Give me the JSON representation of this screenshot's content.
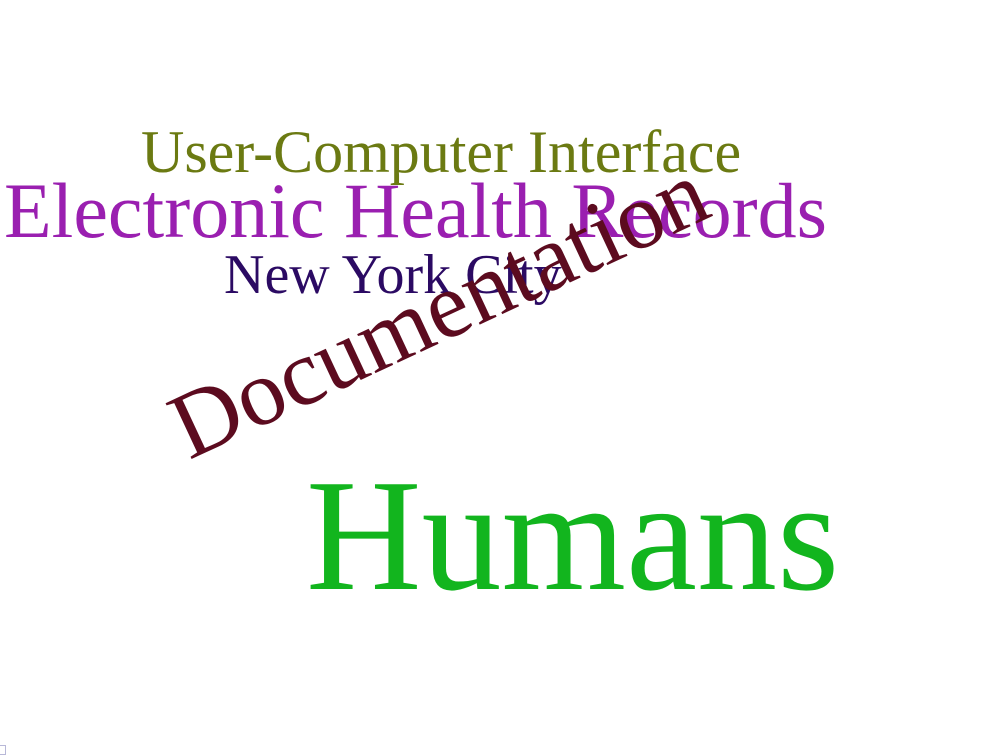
{
  "word_cloud": {
    "words": [
      {
        "key": "interface",
        "text": "User-Computer Interface",
        "color": "#6b7a12"
      },
      {
        "key": "ehr",
        "text": "Electronic Health Records",
        "color": "#9a1fb0"
      },
      {
        "key": "nyc",
        "text": "New York City",
        "color": "#2b0a63"
      },
      {
        "key": "documentation",
        "text": "Documentation",
        "color": "#5c0b1f"
      },
      {
        "key": "humans",
        "text": "Humans",
        "color": "#12b51e"
      }
    ]
  }
}
